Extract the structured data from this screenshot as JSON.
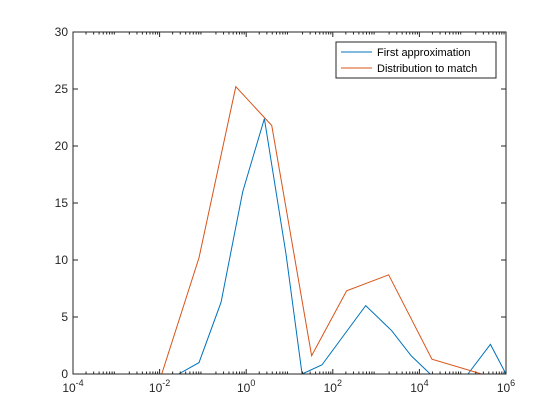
{
  "chart_data": {
    "type": "line",
    "title": "",
    "xlabel": "",
    "ylabel": "",
    "xscale": "log",
    "xlim": [
      0.0001,
      1000000
    ],
    "ylim": [
      0,
      30
    ],
    "xticks": [
      {
        "value": 0.0001,
        "base": "10",
        "exp": "-4"
      },
      {
        "value": 0.01,
        "base": "10",
        "exp": "-2"
      },
      {
        "value": 1,
        "base": "10",
        "exp": "0"
      },
      {
        "value": 100,
        "base": "10",
        "exp": "2"
      },
      {
        "value": 10000,
        "base": "10",
        "exp": "4"
      },
      {
        "value": 1000000,
        "base": "10",
        "exp": "6"
      }
    ],
    "yticks": [
      0,
      5,
      10,
      15,
      20,
      25,
      30
    ],
    "grid": false,
    "legend_position": "top-right",
    "series": [
      {
        "name": "First approximation",
        "color": "#0072BD",
        "x": [
          0.001,
          0.0104,
          0.0275,
          0.0813,
          0.263,
          0.832,
          2.63,
          8.32,
          19.5,
          56.2,
          575,
          2290,
          6460,
          17800,
          100000,
          132000,
          437000,
          1000000
        ],
        "y": [
          0,
          0,
          0,
          1.0,
          6.3,
          16.0,
          22.4,
          10.5,
          0,
          0.8,
          6.0,
          3.8,
          1.6,
          0,
          0,
          0,
          2.6,
          0
        ]
      },
      {
        "name": "Distribution to match",
        "color": "#D95319",
        "x": [
          0.001,
          0.0112,
          0.0813,
          0.575,
          3.89,
          32.4,
          209,
          1950,
          19500,
          275000,
          1000000
        ],
        "y": [
          0,
          0,
          10.2,
          25.2,
          21.8,
          1.6,
          7.3,
          8.7,
          1.3,
          0,
          0
        ]
      }
    ]
  }
}
